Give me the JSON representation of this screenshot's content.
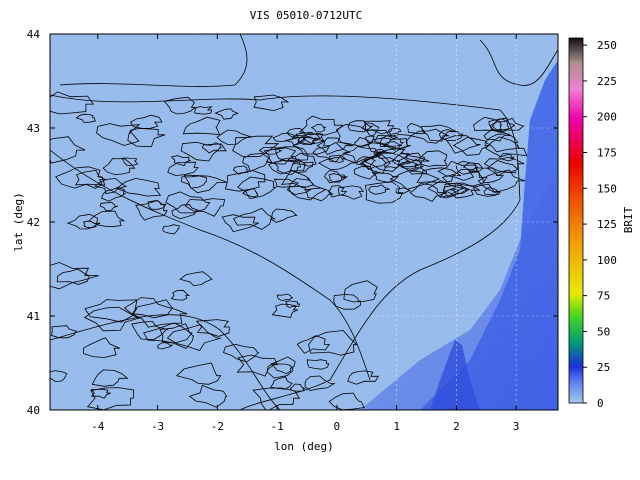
{
  "chart_data": {
    "type": "heatmap",
    "title": "VIS 05010-0712UTC",
    "xlabel": "lon (deg)",
    "ylabel": "lat (deg)",
    "xlim": [
      -4.8,
      3.7
    ],
    "ylim": [
      40,
      44
    ],
    "x_ticks": [
      -4,
      -3,
      -2,
      -1,
      0,
      1,
      2,
      3
    ],
    "y_ticks": [
      40,
      41,
      42,
      43,
      44
    ],
    "grid": "dashed white at integer lon/lat over land region",
    "colorbar": {
      "label": "BRIT",
      "range": [
        0,
        255
      ],
      "ticks": [
        0,
        25,
        50,
        75,
        100,
        125,
        150,
        175,
        200,
        225,
        250
      ],
      "colors": [
        "#a8c8f0",
        "#3a4ef0",
        "#1a2fd8",
        "#00a060",
        "#48d820",
        "#e8e800",
        "#f0a000",
        "#f05000",
        "#e80000",
        "#f000b0",
        "#f080d0",
        "#c0a0a0",
        "#202020"
      ]
    },
    "field_colors": {
      "land": "#8fb6ea",
      "sea": "#3a62e6",
      "deep_sea": "#2a4fe0"
    },
    "contour_color": "#000000"
  }
}
